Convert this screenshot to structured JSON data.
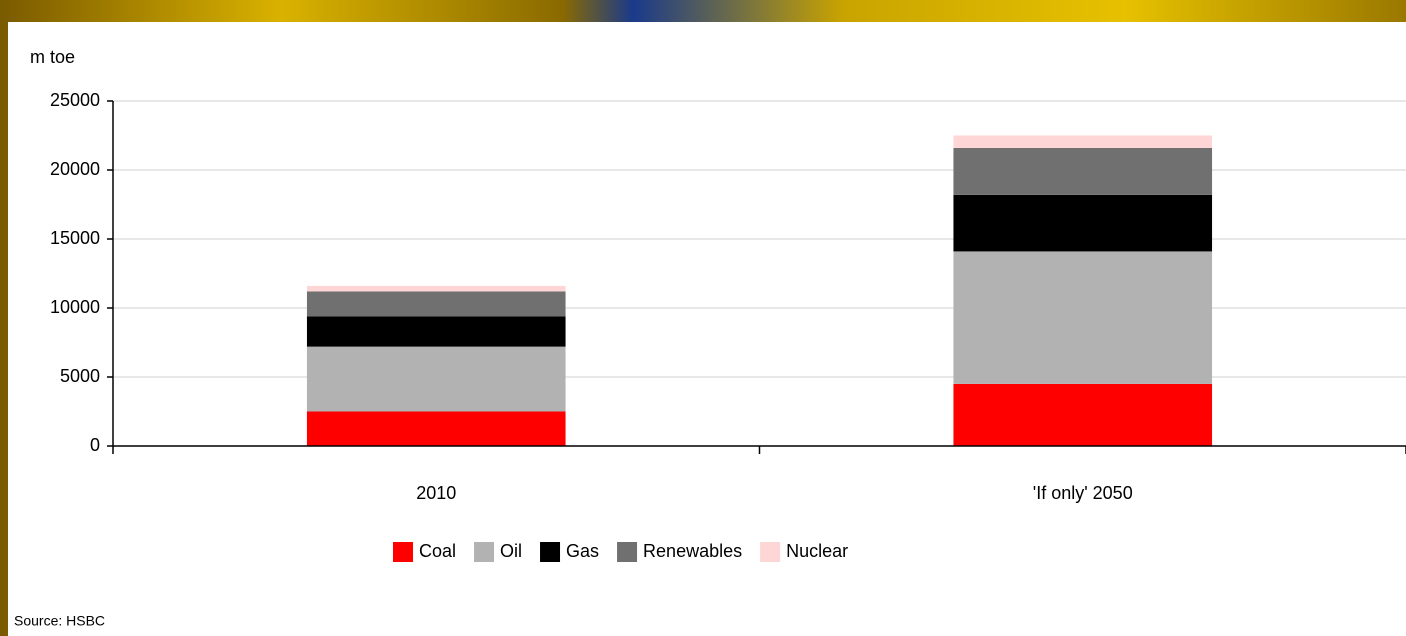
{
  "chart_data": {
    "type": "stacked_bar",
    "y_label": "m toe",
    "categories": [
      "2010",
      "'If only' 2050"
    ],
    "series": [
      {
        "name": "Coal",
        "color": "#ff0000",
        "values": [
          2500,
          4500
        ]
      },
      {
        "name": "Oil",
        "color": "#b2b2b2",
        "values": [
          4700,
          9600
        ]
      },
      {
        "name": "Gas",
        "color": "#000000",
        "values": [
          2200,
          4100
        ]
      },
      {
        "name": "Renewables",
        "color": "#707070",
        "values": [
          1800,
          3400
        ]
      },
      {
        "name": "Nuclear",
        "color": "#ffd6d6",
        "values": [
          400,
          900
        ]
      }
    ],
    "ylim": [
      0,
      25000
    ],
    "yticks": [
      0,
      5000,
      10000,
      15000,
      20000,
      25000
    ],
    "grid": true,
    "legend": "bottom",
    "source": "Source: HSBC"
  }
}
